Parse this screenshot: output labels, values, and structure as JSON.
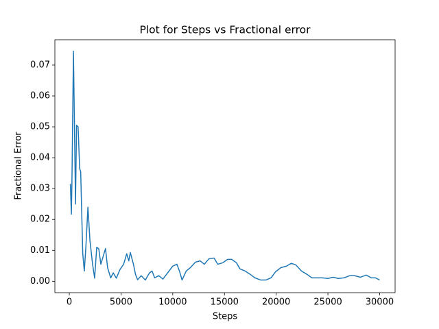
{
  "chart_data": {
    "type": "line",
    "title": "Plot for Steps vs Fractional error",
    "xlabel": "Steps",
    "ylabel": "Fractional Error",
    "series": [
      {
        "name": "Fractional Error",
        "color": "#1f77b4",
        "x": [
          100,
          200,
          250,
          400,
          600,
          700,
          850,
          1000,
          1100,
          1300,
          1450,
          1600,
          1800,
          2000,
          2250,
          2450,
          2650,
          2850,
          3050,
          3250,
          3500,
          3700,
          4000,
          4250,
          4550,
          4900,
          5250,
          5550,
          5750,
          5900,
          6200,
          6400,
          6600,
          6950,
          7350,
          7750,
          8000,
          8250,
          8650,
          9050,
          9550,
          10000,
          10400,
          10650,
          10900,
          11300,
          11700,
          12200,
          12650,
          13050,
          13500,
          14000,
          14350,
          14850,
          15300,
          15700,
          16150,
          16500,
          17000,
          17500,
          17950,
          18500,
          19000,
          19500,
          19950,
          20450,
          21000,
          21450,
          21900,
          22450,
          23000,
          23450,
          23900,
          24450,
          25000,
          25500,
          26000,
          26550,
          27100,
          27600,
          28150,
          28700,
          29200,
          29600,
          30000
        ],
        "values": [
          0.0315,
          0.0217,
          0.031,
          0.0745,
          0.025,
          0.0505,
          0.05,
          0.0365,
          0.0355,
          0.009,
          0.0033,
          0.011,
          0.024,
          0.013,
          0.0055,
          0.001,
          0.011,
          0.0105,
          0.0055,
          0.0078,
          0.0106,
          0.0044,
          0.0011,
          0.0027,
          0.001,
          0.0038,
          0.0055,
          0.0089,
          0.0066,
          0.0093,
          0.0055,
          0.0022,
          0.0005,
          0.0018,
          0.0004,
          0.0027,
          0.0033,
          0.0011,
          0.0018,
          0.0007,
          0.0029,
          0.0049,
          0.0055,
          0.0033,
          0.0004,
          0.0033,
          0.0044,
          0.0062,
          0.0066,
          0.0055,
          0.0073,
          0.0075,
          0.0055,
          0.006,
          0.0071,
          0.0071,
          0.006,
          0.004,
          0.0033,
          0.0022,
          0.0011,
          0.0004,
          0.0004,
          0.0011,
          0.0031,
          0.0044,
          0.0049,
          0.0058,
          0.0053,
          0.0033,
          0.0022,
          0.0011,
          0.0011,
          0.0011,
          0.0009,
          0.0013,
          0.0009,
          0.0011,
          0.0018,
          0.0018,
          0.0013,
          0.002,
          0.0011,
          0.0011,
          0.0004
        ]
      }
    ],
    "xlim": [
      -1395,
      31495
    ],
    "xticks": [
      0,
      5000,
      10000,
      15000,
      20000,
      25000,
      30000
    ],
    "ylim": [
      -0.0037,
      0.0782
    ],
    "yticks": [
      {
        "value": 0,
        "label": "0.00"
      },
      {
        "value": 0.01,
        "label": "0.01"
      },
      {
        "value": 0.02,
        "label": "0.02"
      },
      {
        "value": 0.03,
        "label": "0.03"
      },
      {
        "value": 0.04,
        "label": "0.04"
      },
      {
        "value": 0.05,
        "label": "0.05"
      },
      {
        "value": 0.06,
        "label": "0.06"
      },
      {
        "value": 0.07,
        "label": "0.07"
      }
    ],
    "grid": false
  }
}
